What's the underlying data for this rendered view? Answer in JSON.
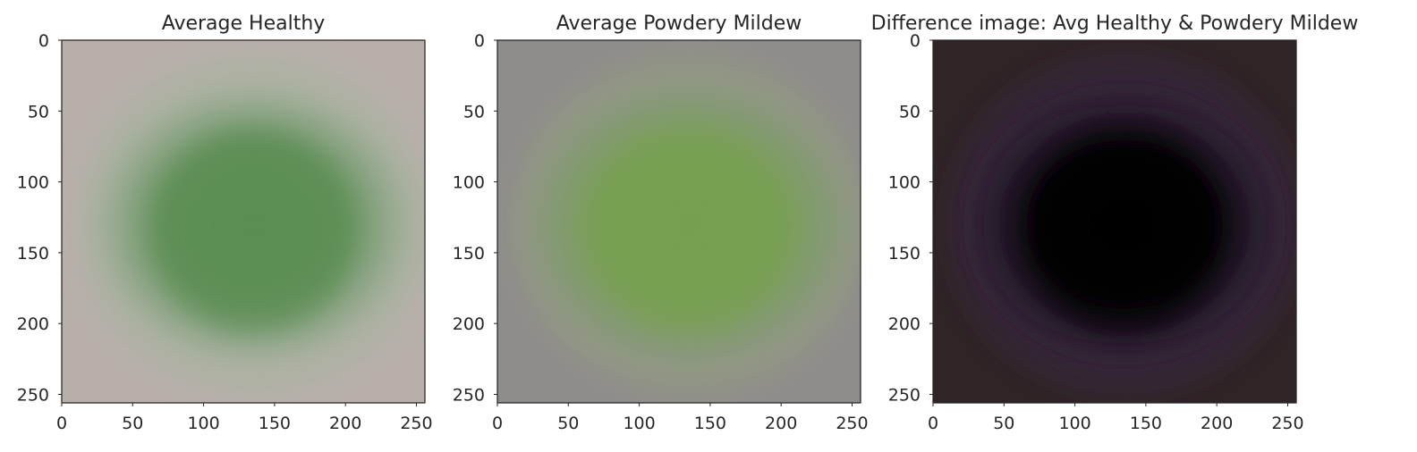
{
  "chart_data": [
    {
      "type": "heatmap",
      "panel": "healthy",
      "title": "Average Healthy",
      "xlim": [
        0,
        256
      ],
      "ylim": [
        256,
        0
      ],
      "xticks": [
        0,
        50,
        100,
        150,
        200,
        250
      ],
      "yticks": [
        0,
        50,
        100,
        150,
        200,
        250
      ],
      "grid": false,
      "colors": {
        "background": "#b8afab",
        "blob_outer": "#8ea789",
        "blob_inner": "#5a8d52",
        "edge_haze": "#a8b59e"
      }
    },
    {
      "type": "heatmap",
      "panel": "mildew",
      "title": "Average Powdery Mildew",
      "xlim": [
        0,
        256
      ],
      "ylim": [
        256,
        0
      ],
      "xticks": [
        0,
        50,
        100,
        150,
        200,
        250
      ],
      "yticks": [
        0,
        50,
        100,
        150,
        200,
        250
      ],
      "grid": false,
      "colors": {
        "background": "#8f8c8b",
        "blob_outer": "#809a6f",
        "blob_inner": "#76a050",
        "edge_haze": "#93a07f"
      }
    },
    {
      "type": "heatmap",
      "panel": "difference",
      "title": "Difference image: Avg Healthy & Powdery Mildew",
      "xlim": [
        0,
        256
      ],
      "ylim": [
        256,
        0
      ],
      "xticks": [
        0,
        50,
        100,
        150,
        200,
        250
      ],
      "yticks": [
        0,
        50,
        100,
        150,
        200,
        250
      ],
      "grid": false,
      "colors": {
        "background": "#2f2426",
        "blob_outer": "#2a1c33",
        "blob_inner": "#040304",
        "edge_haze": "#3d2b45"
      }
    }
  ]
}
